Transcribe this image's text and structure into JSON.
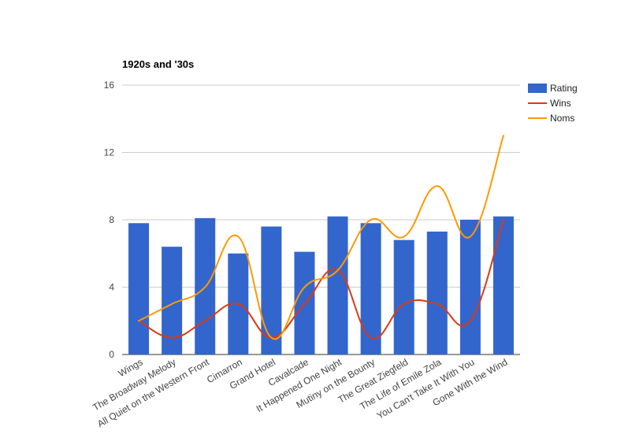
{
  "chart_data": {
    "type": "bar",
    "title": "1920s and '30s",
    "xlabel": "",
    "ylabel": "",
    "categories": [
      "Wings",
      "The Broadway Melody",
      "All Quiet on the Western Front",
      "Cimarron",
      "Grand Hotel",
      "Cavalcade",
      "It Happened One Night",
      "Mutiny on the Bounty",
      "The Great Ziegfeld",
      "The Life of Emile Zola",
      "You Can't Take It With You",
      "Gone With the Wind"
    ],
    "series": [
      {
        "name": "Rating",
        "type": "bar",
        "color": "#3366cc",
        "values": [
          7.8,
          6.4,
          8.1,
          6.0,
          7.6,
          6.1,
          8.2,
          7.8,
          6.8,
          7.3,
          8.0,
          8.2
        ]
      },
      {
        "name": "Wins",
        "type": "line",
        "color": "#dc3912",
        "values": [
          2,
          1,
          2,
          3,
          1,
          3,
          5,
          1,
          3,
          3,
          2,
          8
        ]
      },
      {
        "name": "Noms",
        "type": "line",
        "color": "#ff9900",
        "values": [
          2,
          3,
          4,
          7,
          1,
          4,
          5,
          8,
          7,
          10,
          7,
          13
        ]
      }
    ],
    "yticks": [
      "0",
      "4",
      "8",
      "12",
      "16"
    ],
    "ylim": [
      0,
      16
    ],
    "grid": true,
    "legend_position": "right"
  }
}
